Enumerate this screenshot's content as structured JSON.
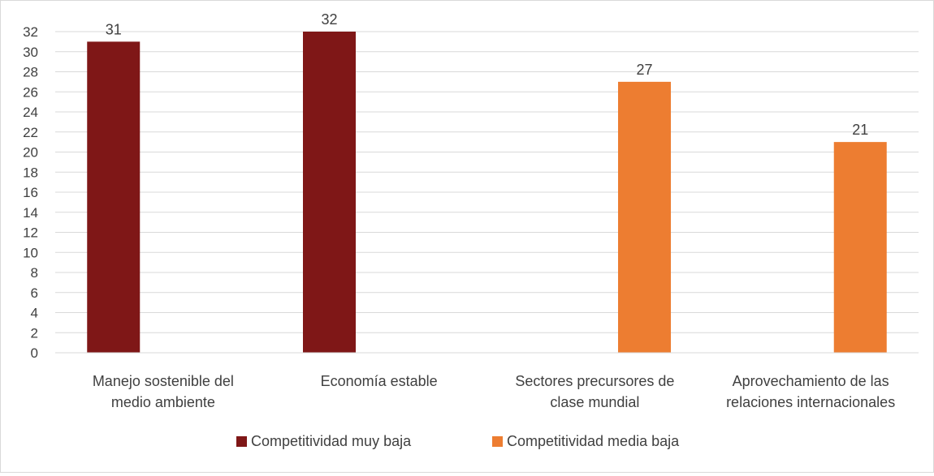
{
  "chart_data": {
    "type": "bar",
    "categories": [
      [
        "Manejo sostenible del",
        "medio ambiente"
      ],
      [
        "Economía estable"
      ],
      [
        "Sectores precursores de",
        "clase mundial"
      ],
      [
        "Aprovechamiento de las",
        "relaciones internacionales"
      ]
    ],
    "series": [
      {
        "name": "Competitividad muy baja",
        "color": "#7f1717",
        "values": [
          31,
          32,
          null,
          null
        ]
      },
      {
        "name": "Competitividad media baja",
        "color": "#ed7d31",
        "values": [
          null,
          null,
          27,
          21
        ]
      }
    ],
    "ylim": [
      0,
      32
    ],
    "ytick_step": 2,
    "grid": true,
    "legend_position": "bottom",
    "data_labels": true
  }
}
